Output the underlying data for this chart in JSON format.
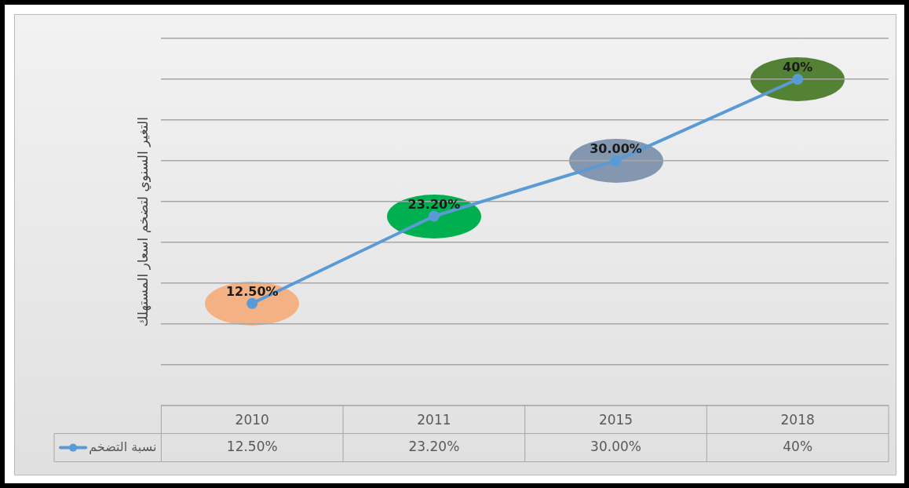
{
  "chart_data": {
    "type": "line",
    "ylabel": "التغير السنوي لتضخم اسعار المستهلك",
    "categories": [
      "2010",
      "2011",
      "2015",
      "2018"
    ],
    "series": [
      {
        "name": "نسبة التضخم",
        "color": "#5b9bd5",
        "values": [
          12.5,
          23.2,
          30,
          40
        ],
        "colors": [
          "#f4b183",
          "#00b050",
          "#8497b0",
          "#548235"
        ],
        "value_labels": [
          "12.50%",
          "23.20%",
          "30.00%",
          "40%"
        ]
      }
    ],
    "grid": "y",
    "tick_labels": "x",
    "legend": "bottom left",
    "marker": "circle",
    "line_style": "solid"
  }
}
